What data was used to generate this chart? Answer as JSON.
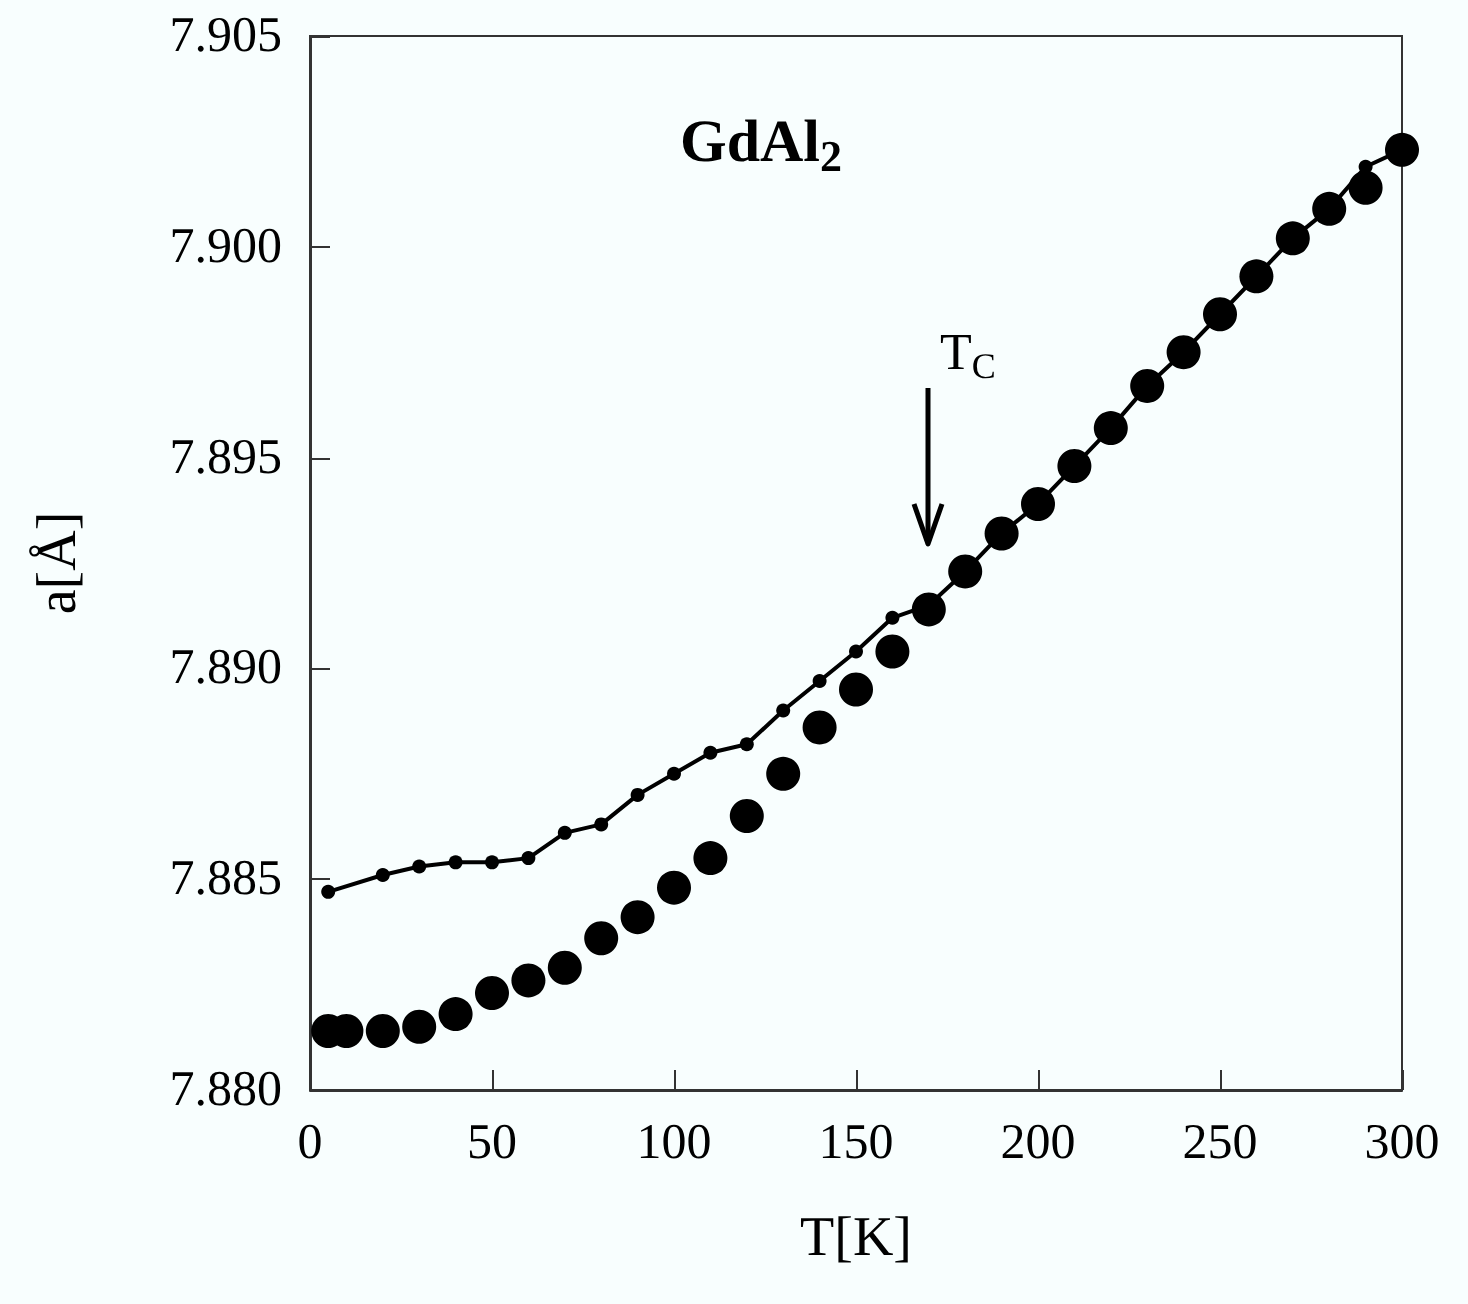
{
  "chart_data": {
    "type": "scatter",
    "title": "GdAl$_{2}$",
    "xlabel": "T[K]",
    "ylabel": "a[Å]",
    "annotations": [
      "T$_{C}$"
    ],
    "series": [
      {
        "type": "line",
        "color": "#000000",
        "x": [
          5,
          20,
          30,
          40,
          50,
          60,
          70,
          80,
          90,
          100,
          110,
          120,
          130,
          140,
          150,
          160,
          170,
          180,
          190,
          200,
          210,
          220,
          230,
          240,
          250,
          260,
          270,
          280,
          290,
          300
        ],
        "values": [
          7.8847,
          7.8851,
          7.8853,
          7.8854,
          7.8854,
          7.8855,
          7.8861,
          7.8863,
          7.887,
          7.8875,
          7.888,
          7.8882,
          7.889,
          7.8897,
          7.8904,
          7.8912,
          7.8915,
          7.8923,
          7.8932,
          7.8939,
          7.8948,
          7.8957,
          7.8967,
          7.8975,
          7.8984,
          7.8993,
          7.9002,
          7.9009,
          7.9019,
          7.9023
        ]
      },
      {
        "color": "#000000",
        "x": [
          5,
          10,
          20,
          30,
          40,
          50,
          60,
          70,
          80,
          90,
          100,
          110,
          120,
          130,
          140,
          150,
          160,
          170,
          180,
          190,
          200,
          210,
          220,
          230,
          240,
          250,
          260,
          270,
          280,
          290,
          300
        ],
        "values": [
          7.8814,
          7.8814,
          7.8814,
          7.8815,
          7.8818,
          7.8823,
          7.8826,
          7.8829,
          7.8836,
          7.8841,
          7.8848,
          7.8855,
          7.8865,
          7.8875,
          7.8886,
          7.8895,
          7.8904,
          7.8914,
          7.8923,
          7.8932,
          7.8939,
          7.8948,
          7.8957,
          7.8967,
          7.8975,
          7.8984,
          7.8993,
          7.9002,
          7.9009,
          7.9014,
          7.9023
        ]
      }
    ],
    "xlim": [
      0,
      300
    ],
    "xticks": [
      0,
      50,
      100,
      150,
      200,
      250,
      300
    ],
    "ylim": [
      7.88,
      7.905
    ],
    "yticks": [
      {
        "value": 7.88,
        "label": "7.880"
      },
      {
        "value": 7.885,
        "label": "7.885"
      },
      {
        "value": 7.89,
        "label": "7.890"
      },
      {
        "value": 7.895,
        "label": "7.895"
      },
      {
        "value": 7.9,
        "label": "7.900"
      },
      {
        "value": 7.905,
        "label": "7.905"
      }
    ],
    "grid": false,
    "marker": "circle",
    "line_style": "solid"
  }
}
